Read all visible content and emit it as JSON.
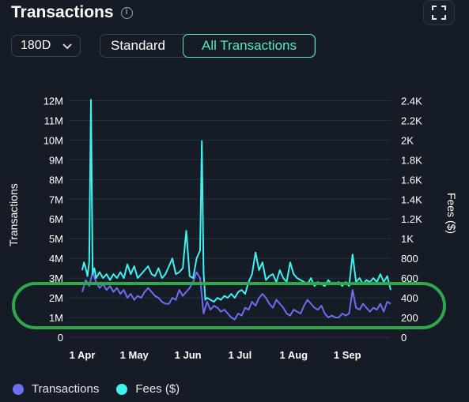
{
  "header": {
    "title": "Transactions",
    "info_icon": "info-icon",
    "expand_icon": "expand-icon"
  },
  "controls": {
    "range_value": "180D",
    "tabs": [
      {
        "label": "Standard",
        "active": false
      },
      {
        "label": "All Transactions",
        "active": true
      }
    ]
  },
  "colors": {
    "transactions": "#6d6ef2",
    "fees": "#3ef2f0",
    "highlight": "#2ea84a",
    "accent": "#5be8c0"
  },
  "chart_data": {
    "type": "line",
    "y_left_label": "Transactions",
    "y_right_label": "Fees ($)",
    "y_left_ticks": [
      "0",
      "1M",
      "2M",
      "3M",
      "4M",
      "5M",
      "6M",
      "7M",
      "8M",
      "9M",
      "10M",
      "11M",
      "12M"
    ],
    "y_left_range": [
      0,
      12500000
    ],
    "y_right_ticks": [
      "0",
      "200",
      "400",
      "600",
      "800",
      "1K",
      "1.2K",
      "1.4K",
      "1.6K",
      "1.8K",
      "2K",
      "2.2K",
      "2.4K"
    ],
    "y_right_range": [
      0,
      2500
    ],
    "x_ticks": [
      {
        "label": "1 Apr",
        "day": 0
      },
      {
        "label": "1 May",
        "day": 30
      },
      {
        "label": "1 Jun",
        "day": 61
      },
      {
        "label": "1 Jul",
        "day": 91
      },
      {
        "label": "1 Aug",
        "day": 122
      },
      {
        "label": "1 Sep",
        "day": 153
      }
    ],
    "x_range": [
      0,
      178
    ],
    "series": [
      {
        "name": "Transactions",
        "axis": "left",
        "points": [
          [
            0,
            2300000
          ],
          [
            2,
            2900000
          ],
          [
            4,
            2600000
          ],
          [
            6,
            3300000
          ],
          [
            8,
            2800000
          ],
          [
            10,
            2500000
          ],
          [
            12,
            2700000
          ],
          [
            14,
            2400000
          ],
          [
            16,
            2600000
          ],
          [
            18,
            2300000
          ],
          [
            20,
            2500000
          ],
          [
            22,
            2200000
          ],
          [
            24,
            2400000
          ],
          [
            26,
            2000000
          ],
          [
            28,
            2200000
          ],
          [
            30,
            1900000
          ],
          [
            32,
            2100000
          ],
          [
            34,
            2000000
          ],
          [
            36,
            2300000
          ],
          [
            38,
            2500000
          ],
          [
            40,
            2300000
          ],
          [
            42,
            2100000
          ],
          [
            44,
            2000000
          ],
          [
            46,
            1800000
          ],
          [
            48,
            1700000
          ],
          [
            50,
            1700000
          ],
          [
            52,
            2000000
          ],
          [
            54,
            1900000
          ],
          [
            56,
            2400000
          ],
          [
            58,
            2100000
          ],
          [
            60,
            2300000
          ],
          [
            62,
            2500000
          ],
          [
            64,
            2800000
          ],
          [
            66,
            3300000
          ],
          [
            68,
            3000000
          ],
          [
            70,
            1200000
          ],
          [
            72,
            1800000
          ],
          [
            74,
            1400000
          ],
          [
            76,
            1600000
          ],
          [
            78,
            1500000
          ],
          [
            80,
            1300000
          ],
          [
            82,
            1400000
          ],
          [
            84,
            1200000
          ],
          [
            86,
            1000000
          ],
          [
            88,
            900000
          ],
          [
            90,
            1200000
          ],
          [
            92,
            1100000
          ],
          [
            94,
            1500000
          ],
          [
            96,
            1400000
          ],
          [
            98,
            1800000
          ],
          [
            100,
            1600000
          ],
          [
            102,
            2000000
          ],
          [
            104,
            2200000
          ],
          [
            106,
            2000000
          ],
          [
            108,
            1700000
          ],
          [
            110,
            1500000
          ],
          [
            112,
            1900000
          ],
          [
            114,
            1700000
          ],
          [
            116,
            1500000
          ],
          [
            118,
            1200000
          ],
          [
            120,
            1100000
          ],
          [
            122,
            1400000
          ],
          [
            124,
            1300000
          ],
          [
            126,
            1200000
          ],
          [
            128,
            1600000
          ],
          [
            130,
            1900000
          ],
          [
            132,
            1700000
          ],
          [
            134,
            1500000
          ],
          [
            136,
            1400000
          ],
          [
            138,
            1600000
          ],
          [
            140,
            1200000
          ],
          [
            142,
            1000000
          ],
          [
            144,
            1100000
          ],
          [
            146,
            1000000
          ],
          [
            148,
            1000000
          ],
          [
            150,
            1200000
          ],
          [
            152,
            1100000
          ],
          [
            154,
            1200000
          ],
          [
            156,
            2400000
          ],
          [
            158,
            1500000
          ],
          [
            160,
            1400000
          ],
          [
            162,
            1700000
          ],
          [
            164,
            1500000
          ],
          [
            166,
            1300000
          ],
          [
            168,
            1500000
          ],
          [
            170,
            1400000
          ],
          [
            172,
            1700000
          ],
          [
            174,
            1300000
          ],
          [
            176,
            1800000
          ],
          [
            178,
            1700000
          ]
        ]
      },
      {
        "name": "Fees ($)",
        "axis": "right",
        "points": [
          [
            0,
            680
          ],
          [
            1,
            760
          ],
          [
            2,
            700
          ],
          [
            3,
            620
          ],
          [
            4,
            760
          ],
          [
            5,
            2410
          ],
          [
            6,
            640
          ],
          [
            7,
            700
          ],
          [
            8,
            600
          ],
          [
            10,
            660
          ],
          [
            12,
            600
          ],
          [
            14,
            640
          ],
          [
            16,
            580
          ],
          [
            18,
            640
          ],
          [
            20,
            600
          ],
          [
            22,
            660
          ],
          [
            24,
            600
          ],
          [
            26,
            740
          ],
          [
            28,
            640
          ],
          [
            30,
            720
          ],
          [
            32,
            600
          ],
          [
            34,
            640
          ],
          [
            36,
            680
          ],
          [
            38,
            720
          ],
          [
            40,
            640
          ],
          [
            42,
            620
          ],
          [
            44,
            700
          ],
          [
            46,
            600
          ],
          [
            48,
            640
          ],
          [
            50,
            720
          ],
          [
            52,
            800
          ],
          [
            54,
            640
          ],
          [
            56,
            660
          ],
          [
            58,
            700
          ],
          [
            60,
            1080
          ],
          [
            62,
            620
          ],
          [
            64,
            600
          ],
          [
            66,
            800
          ],
          [
            68,
            880
          ],
          [
            69,
            1990
          ],
          [
            70,
            660
          ],
          [
            71,
            380
          ],
          [
            72,
            400
          ],
          [
            74,
            380
          ],
          [
            76,
            360
          ],
          [
            78,
            400
          ],
          [
            80,
            380
          ],
          [
            82,
            420
          ],
          [
            84,
            400
          ],
          [
            86,
            440
          ],
          [
            88,
            400
          ],
          [
            90,
            460
          ],
          [
            92,
            480
          ],
          [
            94,
            440
          ],
          [
            96,
            560
          ],
          [
            98,
            640
          ],
          [
            100,
            860
          ],
          [
            102,
            680
          ],
          [
            104,
            760
          ],
          [
            106,
            580
          ],
          [
            108,
            620
          ],
          [
            110,
            640
          ],
          [
            112,
            560
          ],
          [
            114,
            680
          ],
          [
            116,
            600
          ],
          [
            118,
            560
          ],
          [
            120,
            760
          ],
          [
            122,
            640
          ],
          [
            124,
            600
          ],
          [
            126,
            580
          ],
          [
            128,
            560
          ],
          [
            130,
            540
          ],
          [
            132,
            600
          ],
          [
            134,
            520
          ],
          [
            136,
            560
          ],
          [
            138,
            540
          ],
          [
            140,
            520
          ],
          [
            142,
            580
          ],
          [
            144,
            540
          ],
          [
            146,
            540
          ],
          [
            148,
            560
          ],
          [
            150,
            520
          ],
          [
            152,
            560
          ],
          [
            154,
            520
          ],
          [
            156,
            840
          ],
          [
            158,
            560
          ],
          [
            160,
            600
          ],
          [
            162,
            540
          ],
          [
            164,
            580
          ],
          [
            166,
            560
          ],
          [
            168,
            600
          ],
          [
            170,
            560
          ],
          [
            172,
            640
          ],
          [
            174,
            560
          ],
          [
            176,
            620
          ],
          [
            178,
            480
          ]
        ]
      }
    ],
    "grid": true,
    "legend_position": "bottom-left",
    "annotation": "green rounded highlight around the 1M–2M transactions band"
  }
}
